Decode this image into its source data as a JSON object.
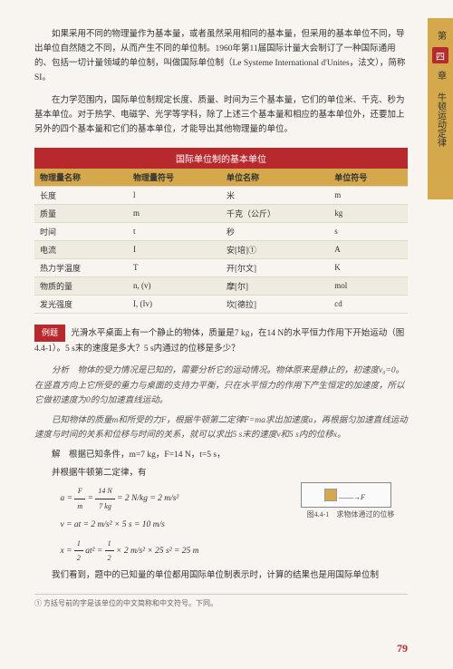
{
  "sidebar": {
    "top": "第",
    "icon": "四",
    "bottom": "章",
    "title": "牛顿运动定律"
  },
  "para1": "如果采用不同的物理量作为基本量，或者虽然采用相同的基本量，但采用的基本单位不同，导出单位自然随之不同，从而产生不同的单位制。1960年第11届国际计量大会制订了一种国际通用的、包括一切计量领域的单位制，叫做国际单位制（Le Systeme International d'Unites，法文），简称SI。",
  "para2": "在力学范围内，国际单位制规定长度、质量、时间为三个基本量，它们的单位米、千克、秒为基本单位。对于热学、电磁学、光学等学科，除了上述三个基本量和相应的基本单位外，还要加上另外的四个基本量和它们的基本单位，才能导出其他物理量的单位。",
  "tableTitle": "国际单位制的基本单位",
  "headers": [
    "物理量名称",
    "物理量符号",
    "单位名称",
    "单位符号"
  ],
  "rows": [
    [
      "长度",
      "l",
      "米",
      "m"
    ],
    [
      "质量",
      "m",
      "千克（公斤）",
      "kg"
    ],
    [
      "时间",
      "t",
      "秒",
      "s"
    ],
    [
      "电流",
      "I",
      "安[培]①",
      "A"
    ],
    [
      "热力学温度",
      "T",
      "开[尔文]",
      "K"
    ],
    [
      "物质的量",
      "n, (v)",
      "摩[尔]",
      "mol"
    ],
    [
      "发光强度",
      "I, (Iv)",
      "坎[德拉]",
      "cd"
    ]
  ],
  "exampleTag": "例题",
  "exampleText": "光滑水平桌面上有一个静止的物体，质量是7 kg，在14 N的水平恒力作用下开始运动（图4.4-1）。5 s末的速度是多大？5 s内通过的位移是多少？",
  "analysis1": "分析　物体的受力情况是已知的，需要分析它的运动情况。物体原来是静止的，初速度v₀=0。在竖直方向上它所受的重力与桌面的支持力平衡，只在水平恒力的作用下产生恒定的加速度，所以它做初速度为0的匀加速直线运动。",
  "analysis2": "已知物体的质量m和所受的力F，根据牛顿第二定律F=ma求出加速度a，再根据匀加速直线运动速度与时间的关系和位移与时间的关系，就可以求出5 s末的速度v和5 s内的位移x。",
  "solve1": "解　根据已知条件，m=7 kg，F=14 N，t=5 s，",
  "solve2": "并根据牛顿第二定律，有",
  "formulaA": {
    "lhs": "a = ",
    "num": "F",
    "den": "m",
    "mid": " = ",
    "num2": "14 N",
    "den2": "7 kg",
    "rhs": " = 2 N/kg = 2 m/s²"
  },
  "formulaV": "v = at = 2 m/s² × 5 s = 10 m/s",
  "formulaX": {
    "lhs": "x = ",
    "num": "1",
    "den": "2",
    "mid": " at² = ",
    "num2": "1",
    "den2": "2",
    "rhs": " × 2 m/s² × 25 s² = 25 m"
  },
  "para3": "我们看到，题中的已知量的单位都用国际单位制表示时，计算的结果也是用国际单位制",
  "footnote": "① 方括号前的字是该单位的中文简称和中文符号。下同。",
  "figCaption": "图4.4-1　求物体通过的位移",
  "figF": "F",
  "pageNum": "79"
}
